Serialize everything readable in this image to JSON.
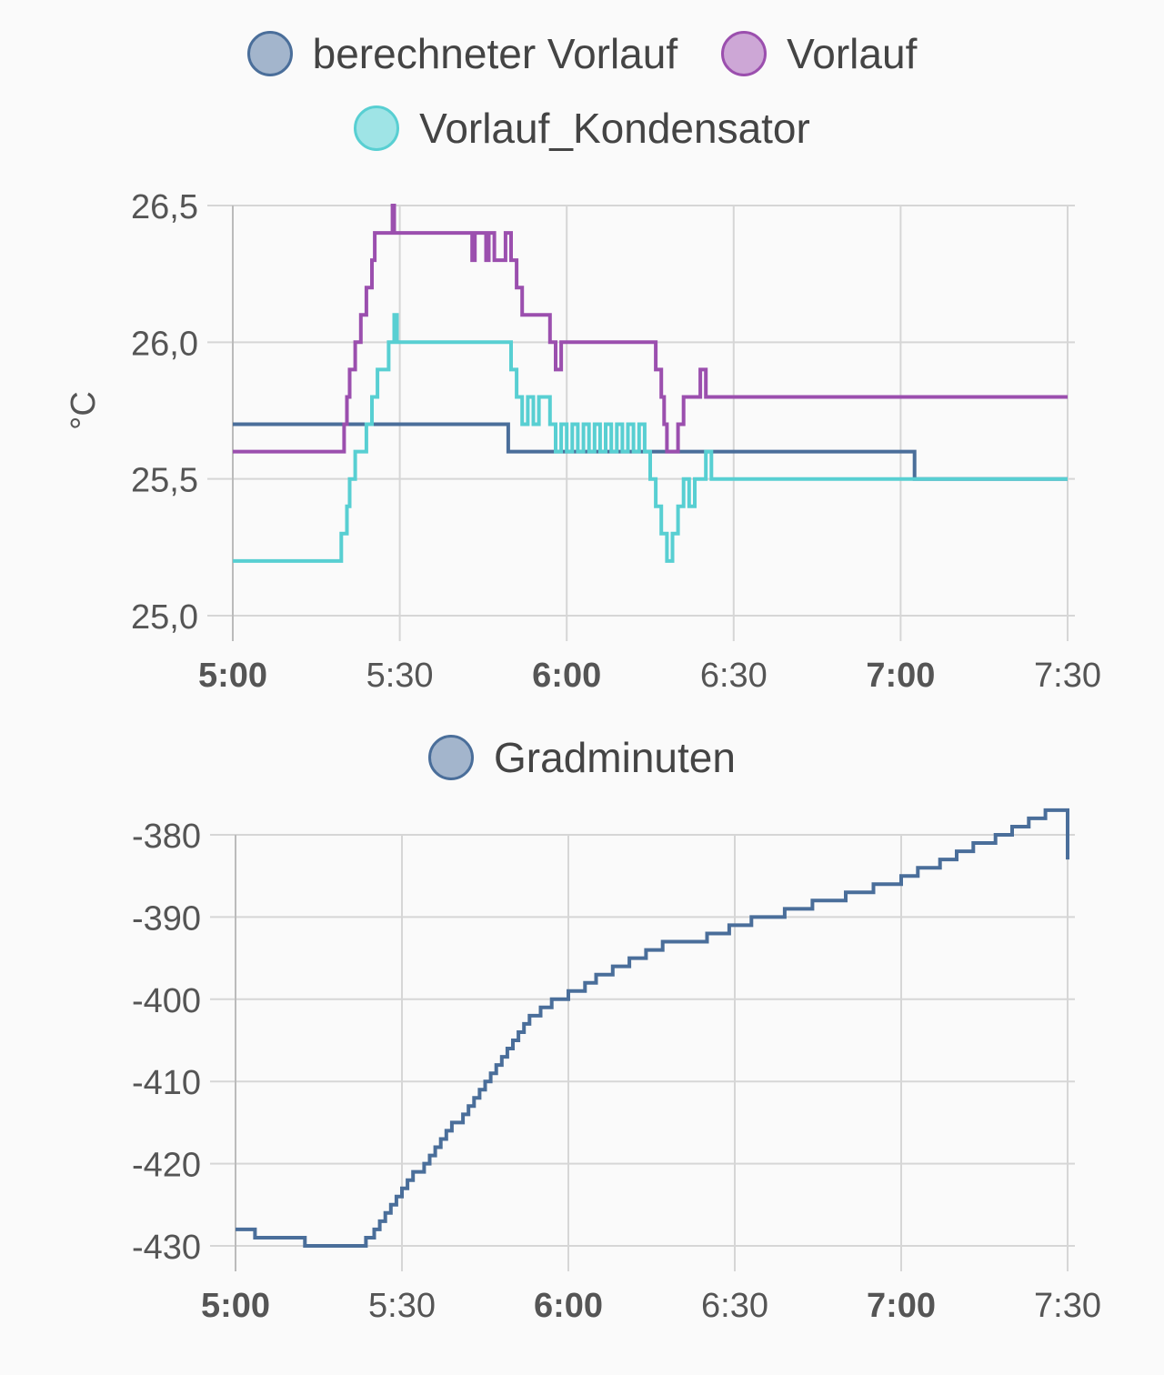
{
  "charts_meta": {
    "colors": {
      "berechneter_vorlauf": "#4a6e9a",
      "vorlauf": "#9b4fae",
      "kondensator": "#58cfd2",
      "gradminuten": "#4a6e9a",
      "grid": "#d6d6d6",
      "axis": "#bbbbbb"
    }
  },
  "chart_data": [
    {
      "type": "line",
      "title": "",
      "ylabel": "°C",
      "xlabel": "",
      "ylim": [
        25.0,
        26.5
      ],
      "xlim": [
        "5:00",
        "7:30"
      ],
      "y_ticks": [
        "26,5",
        "26,0",
        "25,5",
        "25,0"
      ],
      "x_ticks": [
        {
          "label": "5:00",
          "bold": true
        },
        {
          "label": "5:30",
          "bold": false
        },
        {
          "label": "6:00",
          "bold": true
        },
        {
          "label": "6:30",
          "bold": false
        },
        {
          "label": "7:00",
          "bold": true
        },
        {
          "label": "7:30",
          "bold": false
        }
      ],
      "grid": true,
      "legend": "top",
      "series": [
        {
          "name": "berechneter Vorlauf",
          "color": "#4a6e9a",
          "step": true,
          "x": [
            "5:00",
            "5:49.5",
            "7:02.5",
            "7:30"
          ],
          "values": [
            25.7,
            25.6,
            25.5,
            25.5
          ]
        },
        {
          "name": "Vorlauf",
          "color": "#9b4fae",
          "step": true,
          "x": [
            "5:00",
            "5:20",
            "5:20.5",
            "5:21",
            "5:22",
            "5:23",
            "5:24",
            "5:25",
            "5:25.5",
            "5:26",
            "5:27",
            "5:28",
            "5:28.7",
            "5:29",
            "5:29.7",
            "5:43",
            "5:43.5",
            "5:44.5",
            "5:45.5",
            "5:46",
            "5:47",
            "5:49",
            "5:49.5",
            "5:50",
            "5:51",
            "5:52",
            "5:53",
            "5:57",
            "5:58",
            "5:58.5",
            "5:59",
            "6:00",
            "6:16",
            "6:17",
            "6:17.5",
            "6:18",
            "6:18.5",
            "6:19",
            "6:20",
            "6:21",
            "6:22",
            "6:24",
            "6:25",
            "6:26",
            "7:30"
          ],
          "values": [
            25.6,
            25.7,
            25.8,
            25.9,
            26.0,
            26.1,
            26.2,
            26.3,
            26.4,
            26.4,
            26.4,
            26.4,
            26.5,
            26.4,
            26.4,
            26.3,
            26.4,
            26.4,
            26.3,
            26.4,
            26.3,
            26.4,
            26.4,
            26.3,
            26.2,
            26.1,
            26.1,
            26.0,
            25.9,
            25.9,
            26.0,
            26.0,
            25.9,
            25.8,
            25.7,
            25.6,
            25.6,
            25.6,
            25.7,
            25.8,
            25.8,
            25.9,
            25.8,
            25.8,
            25.8
          ]
        },
        {
          "name": "Vorlauf_Kondensator",
          "color": "#58cfd2",
          "step": true,
          "x": [
            "5:00",
            "5:19.5",
            "5:20.5",
            "5:21",
            "5:22",
            "5:24",
            "5:25",
            "5:26",
            "5:28",
            "5:29",
            "5:29.5",
            "5:30",
            "5:50",
            "5:51",
            "5:52",
            "5:53",
            "5:54",
            "5:55",
            "5:57",
            "5:58",
            "5:59",
            "6:00",
            "6:01",
            "6:02",
            "6:03",
            "6:04",
            "6:05",
            "6:06",
            "6:07",
            "6:08",
            "6:09",
            "6:10",
            "6:11",
            "6:12",
            "6:13",
            "6:14",
            "6:15",
            "6:16",
            "6:17",
            "6:18",
            "6:18.5",
            "6:19",
            "6:20",
            "6:21",
            "6:22",
            "6:23",
            "6:25",
            "6:26",
            "7:02.5",
            "7:30"
          ],
          "values": [
            25.2,
            25.3,
            25.4,
            25.5,
            25.6,
            25.7,
            25.8,
            25.9,
            26.0,
            26.1,
            26.0,
            26.0,
            25.9,
            25.8,
            25.7,
            25.8,
            25.7,
            25.8,
            25.7,
            25.6,
            25.7,
            25.6,
            25.7,
            25.6,
            25.7,
            25.6,
            25.7,
            25.6,
            25.7,
            25.6,
            25.7,
            25.6,
            25.7,
            25.6,
            25.7,
            25.6,
            25.5,
            25.4,
            25.3,
            25.2,
            25.2,
            25.3,
            25.4,
            25.5,
            25.4,
            25.5,
            25.6,
            25.5,
            25.5,
            25.5
          ]
        }
      ]
    },
    {
      "type": "line",
      "title": "",
      "ylabel": "",
      "xlabel": "",
      "ylim": [
        -430,
        -380
      ],
      "xlim": [
        "5:00",
        "7:30"
      ],
      "y_ticks": [
        "-380",
        "-390",
        "-400",
        "-410",
        "-420",
        "-430"
      ],
      "x_ticks": [
        {
          "label": "5:00",
          "bold": true
        },
        {
          "label": "5:30",
          "bold": false
        },
        {
          "label": "6:00",
          "bold": true
        },
        {
          "label": "6:30",
          "bold": false
        },
        {
          "label": "7:00",
          "bold": true
        },
        {
          "label": "7:30",
          "bold": false
        }
      ],
      "grid": true,
      "legend": "top",
      "series": [
        {
          "name": "Gradminuten",
          "color": "#4a6e9a",
          "step": true,
          "x": [
            "5:00",
            "5:03.5",
            "5:12.5",
            "5:23.5",
            "5:25",
            "5:26",
            "5:27",
            "5:28",
            "5:29",
            "5:30",
            "5:31",
            "5:32",
            "5:34",
            "5:35",
            "5:36",
            "5:37",
            "5:38",
            "5:39",
            "5:41",
            "5:42",
            "5:43",
            "5:44",
            "5:45",
            "5:46",
            "5:47",
            "5:48",
            "5:49",
            "5:50",
            "5:51",
            "5:52",
            "5:53",
            "5:55",
            "5:57",
            "6:00",
            "6:03",
            "6:05",
            "6:08",
            "6:11",
            "6:14",
            "6:17",
            "6:25",
            "6:29",
            "6:33",
            "6:39",
            "6:44",
            "6:50",
            "6:55",
            "7:00",
            "7:03",
            "7:07",
            "7:10",
            "7:13",
            "7:17",
            "7:20",
            "7:23",
            "7:26",
            "7:30"
          ],
          "values": [
            -428,
            -429,
            -430,
            -429,
            -428,
            -427,
            -426,
            -425,
            -424,
            -423,
            -422,
            -421,
            -420,
            -419,
            -418,
            -417,
            -416,
            -415,
            -414,
            -413,
            -412,
            -411,
            -410,
            -409,
            -408,
            -407,
            -406,
            -405,
            -404,
            -403,
            -402,
            -401,
            -400,
            -399,
            -398,
            -397,
            -396,
            -395,
            -394,
            -393,
            -392,
            -391,
            -390,
            -389,
            -388,
            -387,
            -386,
            -385,
            -384,
            -383,
            -382,
            -381,
            -380,
            -379,
            -378,
            -377,
            -383
          ]
        }
      ]
    }
  ],
  "legend1": {
    "items": [
      {
        "label": "berechneter Vorlauf",
        "fill": "#a3b5cc",
        "stroke": "#4a6e9a"
      },
      {
        "label": "Vorlauf",
        "fill": "#cda7d6",
        "stroke": "#9b4fae"
      },
      {
        "label": "Vorlauf_Kondensator",
        "fill": "#9fe4e6",
        "stroke": "#58cfd2"
      }
    ]
  },
  "legend2": {
    "items": [
      {
        "label": "Gradminuten",
        "fill": "#a3b5cc",
        "stroke": "#4a6e9a"
      }
    ]
  }
}
